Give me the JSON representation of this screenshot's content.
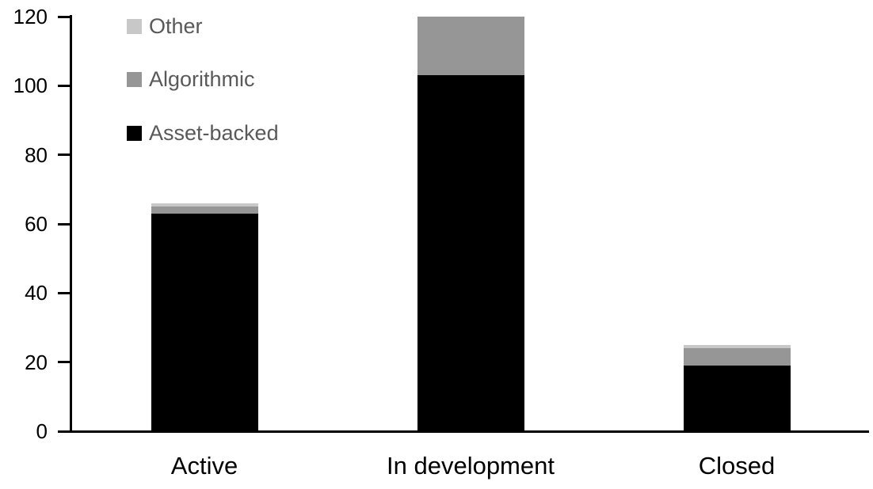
{
  "chart_data": {
    "type": "bar",
    "stacked": true,
    "title": "",
    "xlabel": "",
    "ylabel": "",
    "categories": [
      "Active",
      "In development",
      "Closed"
    ],
    "series": [
      {
        "name": "Asset-backed",
        "color": "#000000",
        "values": [
          63,
          103,
          19
        ]
      },
      {
        "name": "Algorithmic",
        "color": "#969696",
        "values": [
          2,
          17,
          5
        ]
      },
      {
        "name": "Other",
        "color": "#c8c8c8",
        "values": [
          1,
          0,
          1
        ]
      }
    ],
    "totals": [
      66,
      120,
      25
    ],
    "ylim": [
      0,
      120
    ],
    "yticks": [
      0,
      20,
      40,
      60,
      80,
      100,
      120
    ],
    "grid": false,
    "legend_position": "top-left",
    "legend_order": [
      "Other",
      "Algorithmic",
      "Asset-backed"
    ],
    "axis_color": "#000000",
    "tick_label_color": "#000000",
    "legend_text_color": "#595959",
    "background_color": "#ffffff"
  }
}
